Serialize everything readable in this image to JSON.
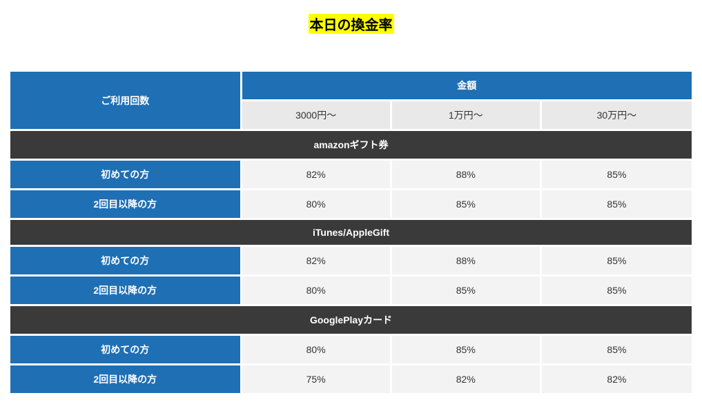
{
  "title": "本日の換金率",
  "colors": {
    "highlight_bg": "#ffff00",
    "header_blue": "#1f6fb5",
    "header_gray": "#e9e9e9",
    "section_bg": "#3a3a3a",
    "value_bg": "#f3f3f3",
    "text_dark": "#333333",
    "text_light": "#ffffff",
    "page_bg": "#ffffff"
  },
  "table": {
    "header": {
      "usage_label": "ご利用回数",
      "amount_label": "金額",
      "tiers": [
        "3000円～",
        "1万円～",
        "30万円～"
      ]
    },
    "sections": [
      {
        "name": "amazonギフト券",
        "rows": [
          {
            "label": "初めての方",
            "values": [
              "82%",
              "88%",
              "85%"
            ]
          },
          {
            "label": "2回目以降の方",
            "values": [
              "80%",
              "85%",
              "85%"
            ]
          }
        ]
      },
      {
        "name": "iTunes/AppleGift",
        "rows": [
          {
            "label": "初めての方",
            "values": [
              "82%",
              "88%",
              "85%"
            ]
          },
          {
            "label": "2回目以降の方",
            "values": [
              "80%",
              "85%",
              "85%"
            ]
          }
        ]
      },
      {
        "name": "GooglePlayカード",
        "rows": [
          {
            "label": "初めての方",
            "values": [
              "80%",
              "85%",
              "85%"
            ]
          },
          {
            "label": "2回目以降の方",
            "values": [
              "75%",
              "82%",
              "82%"
            ]
          }
        ]
      }
    ]
  }
}
